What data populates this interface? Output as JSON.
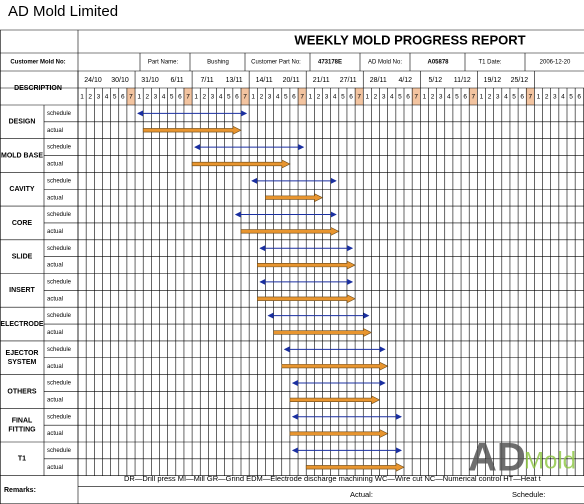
{
  "header": {
    "company": "AD Mold Limited"
  },
  "report": {
    "title": "WEEKLY MOLD PROGRESS REPORT",
    "fields": [
      "Customer Mold No:",
      "Part Name:",
      "Bushing",
      "Customer Part No:",
      "473178E",
      "AD Mold No:",
      "A05878",
      "T1 Date:",
      "2006-12-20"
    ]
  },
  "description_label": "DESCRIPTION",
  "weeks": [
    "24/10",
    "30/10",
    "31/10",
    "6/11",
    "7/11",
    "13/11",
    "14/11",
    "20/11",
    "21/11",
    "27/11",
    "28/11",
    "4/12",
    "5/12",
    "11/12",
    "19/12",
    "25/12"
  ],
  "day_labels": [
    "1",
    "2",
    "3",
    "4",
    "5",
    "6",
    "7"
  ],
  "sub_labels": [
    "schedule",
    "actual"
  ],
  "tasks": [
    {
      "name": [
        "DESIGN"
      ],
      "schedule": [
        7,
        21
      ],
      "actual": [
        8,
        20
      ]
    },
    {
      "name": [
        "MOLD BASE"
      ],
      "schedule": [
        14,
        28
      ],
      "actual": [
        14,
        26
      ]
    },
    {
      "name": [
        "CAVITY"
      ],
      "schedule": [
        21,
        32
      ],
      "actual": [
        23,
        30
      ]
    },
    {
      "name": [
        "CORE"
      ],
      "schedule": [
        19,
        32
      ],
      "actual": [
        20,
        32
      ]
    },
    {
      "name": [
        "SLIDE"
      ],
      "schedule": [
        22,
        34
      ],
      "actual": [
        22,
        34
      ]
    },
    {
      "name": [
        "INSERT"
      ],
      "schedule": [
        22,
        34
      ],
      "actual": [
        22,
        34
      ]
    },
    {
      "name": [
        "ELECTRODE"
      ],
      "schedule": [
        23,
        36
      ],
      "actual": [
        24,
        36
      ]
    },
    {
      "name": [
        "EJECTOR",
        "SYSTEM"
      ],
      "schedule": [
        25,
        38
      ],
      "actual": [
        25,
        38
      ]
    },
    {
      "name": [
        "OTHERS"
      ],
      "schedule": [
        26,
        38
      ],
      "actual": [
        26,
        37
      ]
    },
    {
      "name": [
        "FINAL",
        "FITTING"
      ],
      "schedule": [
        26,
        40
      ],
      "actual": [
        26,
        38
      ]
    },
    {
      "name": [
        "T1"
      ],
      "schedule": [
        26,
        40
      ],
      "actual": [
        28,
        40
      ]
    }
  ],
  "remarks": {
    "label": "Remarks:",
    "legend": "DR—Drill press    MI—Mill    GR—Grind    EDM—Electrode discharge machining    WC—Wire cut    NC—Numerical control    HT—Heat t",
    "actual": "Actual:",
    "schedule": "Schedule:"
  },
  "logo": {
    "mark": "AD",
    "word": "Mold"
  }
}
